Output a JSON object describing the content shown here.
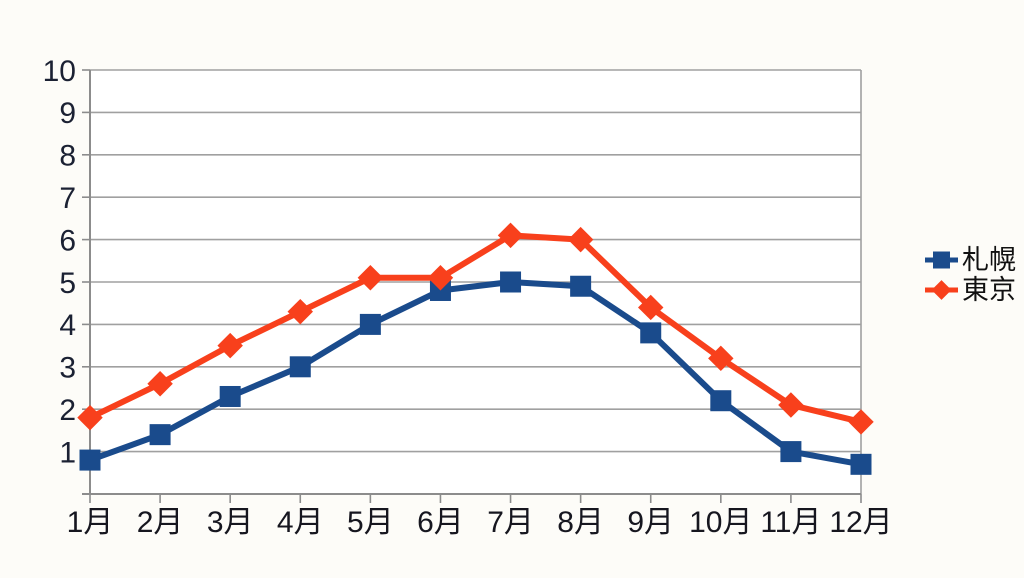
{
  "chart_data": {
    "type": "line",
    "title": "",
    "xlabel": "",
    "ylabel": "",
    "categories": [
      "1月",
      "2月",
      "3月",
      "4月",
      "5月",
      "6月",
      "7月",
      "8月",
      "9月",
      "10月",
      "11月",
      "12月"
    ],
    "series": [
      {
        "name": "札幌",
        "color": "#1A4B8C",
        "marker": "square",
        "values": [
          0.8,
          1.4,
          2.3,
          3.0,
          4.0,
          4.8,
          5.0,
          4.9,
          3.8,
          2.2,
          1.0,
          0.7
        ]
      },
      {
        "name": "東京",
        "color": "#F8401C",
        "marker": "diamond",
        "values": [
          1.8,
          2.6,
          3.5,
          4.3,
          5.1,
          5.1,
          6.1,
          6.0,
          4.4,
          3.2,
          2.1,
          1.7
        ]
      }
    ],
    "ylim": [
      0,
      10
    ],
    "yticks": [
      1,
      2,
      3,
      4,
      5,
      6,
      7,
      8,
      9,
      10
    ],
    "grid": "horizontal",
    "legend_position": "right"
  },
  "colors": {
    "background": "#FDFCF8",
    "plot_background": "#FFFFFF",
    "gridline": "#A0A0A0",
    "axis": "#8C8C8C",
    "tick_label": "#1B2133"
  }
}
